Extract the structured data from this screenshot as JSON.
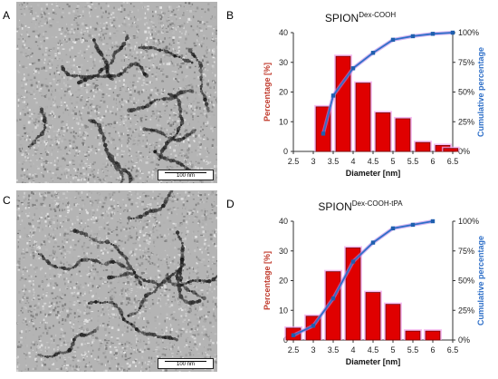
{
  "panels": {
    "A": {
      "letter": "A",
      "scale_label": "100 nm"
    },
    "B": {
      "letter": "B"
    },
    "C": {
      "letter": "C",
      "scale_label": "100 nm"
    },
    "D": {
      "letter": "D"
    }
  },
  "colors": {
    "bar_fill": "#e00000",
    "bar_stroke": "#7a0000",
    "bar_glow": "#f2a6ec",
    "cumulative_line": "#2e6fc8",
    "cumulative_marker": "#1f5fae",
    "line_glow": "#b07ee6",
    "left_axis_label": "#c0392b",
    "right_axis_label": "#2e6fc8"
  },
  "chart_data": [
    {
      "type": "bar",
      "title": "SPION",
      "title_superscript": "Dex-COOH",
      "xlabel": "Diameter [nm]",
      "ylabel": "Percentage [%]",
      "y2label": "Cumulative percentage",
      "x_ticks": [
        "2.5",
        "3",
        "3.5",
        "4",
        "4.5",
        "5",
        "5.5",
        "6",
        "6.5"
      ],
      "x_range": [
        2.5,
        6.5
      ],
      "ylim": [
        0,
        40
      ],
      "y_ticks": [
        "0",
        "10",
        "20",
        "30",
        "40"
      ],
      "y2lim": [
        0,
        100
      ],
      "y2_ticks": [
        "0%",
        "25%",
        "50%",
        "75%",
        "100%"
      ],
      "grid": false,
      "series": [
        {
          "kind": "bar",
          "x": [
            2.75,
            3.25,
            3.75,
            4.25,
            4.75,
            5.25,
            5.75,
            6.25
          ],
          "values": [
            0,
            15,
            32,
            23,
            13,
            11,
            3,
            2
          ]
        },
        {
          "kind": "bar-extra",
          "x": [
            6.45
          ],
          "values": [
            1
          ]
        },
        {
          "kind": "line",
          "axis": "right",
          "x": [
            3.25,
            3.5,
            4.0,
            4.5,
            5.0,
            5.5,
            6.0,
            6.5
          ],
          "values": [
            15,
            47,
            70,
            83,
            94,
            97,
            99,
            100
          ]
        }
      ]
    },
    {
      "type": "bar",
      "title": "SPION",
      "title_superscript": "Dex-COOH-tPA",
      "xlabel": "Diameter [nm]",
      "ylabel": "Percentage [%]",
      "y2label": "Cumulative percentage",
      "x_ticks": [
        "2.5",
        "3",
        "3.5",
        "4",
        "4.5",
        "5",
        "5.5",
        "6",
        "6.5"
      ],
      "x_range": [
        2.5,
        6.5
      ],
      "ylim": [
        0,
        40
      ],
      "y_ticks": [
        "0",
        "10",
        "20",
        "30",
        "40"
      ],
      "y2lim": [
        0,
        100
      ],
      "y2_ticks": [
        "0%",
        "25%",
        "50%",
        "75%",
        "100%"
      ],
      "grid": false,
      "series": [
        {
          "kind": "bar",
          "x": [
            2.5,
            3.0,
            3.5,
            4.0,
            4.5,
            5.0,
            5.5,
            6.0
          ],
          "values": [
            4,
            8,
            23,
            31,
            16,
            12,
            3,
            3
          ]
        },
        {
          "kind": "line",
          "axis": "right",
          "x": [
            2.5,
            3.0,
            3.5,
            4.0,
            4.5,
            5.0,
            5.5,
            6.0
          ],
          "values": [
            4,
            12,
            35,
            66,
            82,
            94,
            97,
            100
          ]
        }
      ]
    }
  ]
}
